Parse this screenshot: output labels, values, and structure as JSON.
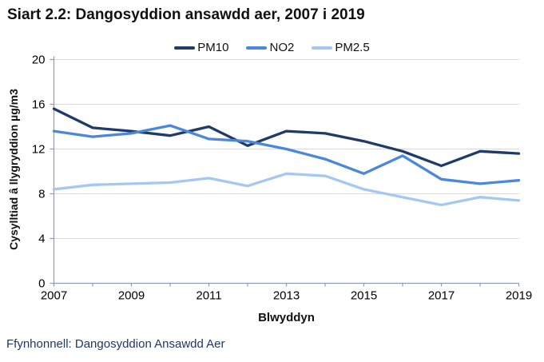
{
  "title": "Siart 2.2: Dangosyddion ansawdd aer, 2007 i 2019",
  "source_note": "Ffynhonnell: Dangosyddion Ansawdd Aer",
  "colors": {
    "pm10": "#1f3b67",
    "no2": "#4a87dd",
    "pm25": "#a4c8f2",
    "gridline": "#d9d9d9",
    "axis": "#8d9cb9",
    "text": "#000000",
    "source_text": "#203864"
  },
  "chart_data": {
    "type": "line",
    "title": "Siart 2.2: Dangosyddion ansawdd aer, 2007 i 2019",
    "xlabel": "Blwyddyn",
    "ylabel": "Cysylltiad â llygryddion µg/m3",
    "x": [
      2007,
      2008,
      2009,
      2010,
      2011,
      2012,
      2013,
      2014,
      2015,
      2016,
      2017,
      2018,
      2019
    ],
    "x_labeled_ticks": [
      2007,
      2009,
      2011,
      2013,
      2015,
      2017,
      2019
    ],
    "ylim": [
      0,
      20
    ],
    "y_ticks": [
      0,
      4,
      8,
      12,
      16,
      20
    ],
    "grid": true,
    "legend_position": "top-center",
    "series": [
      {
        "name": "PM10",
        "color": "#1f3b67",
        "values": [
          15.6,
          13.9,
          13.6,
          13.2,
          14.0,
          12.3,
          13.6,
          13.4,
          12.7,
          11.8,
          10.5,
          11.8,
          11.6
        ]
      },
      {
        "name": "NO2",
        "color": "#4a87dd",
        "values": [
          13.6,
          13.1,
          13.4,
          14.1,
          12.9,
          12.7,
          12.0,
          11.1,
          9.8,
          11.4,
          9.3,
          8.9,
          9.2
        ]
      },
      {
        "name": "PM2.5",
        "color": "#a4c8f2",
        "values": [
          8.4,
          8.8,
          8.9,
          9.0,
          9.4,
          8.7,
          9.8,
          9.6,
          8.4,
          7.7,
          7.0,
          7.7,
          7.4
        ]
      }
    ]
  }
}
